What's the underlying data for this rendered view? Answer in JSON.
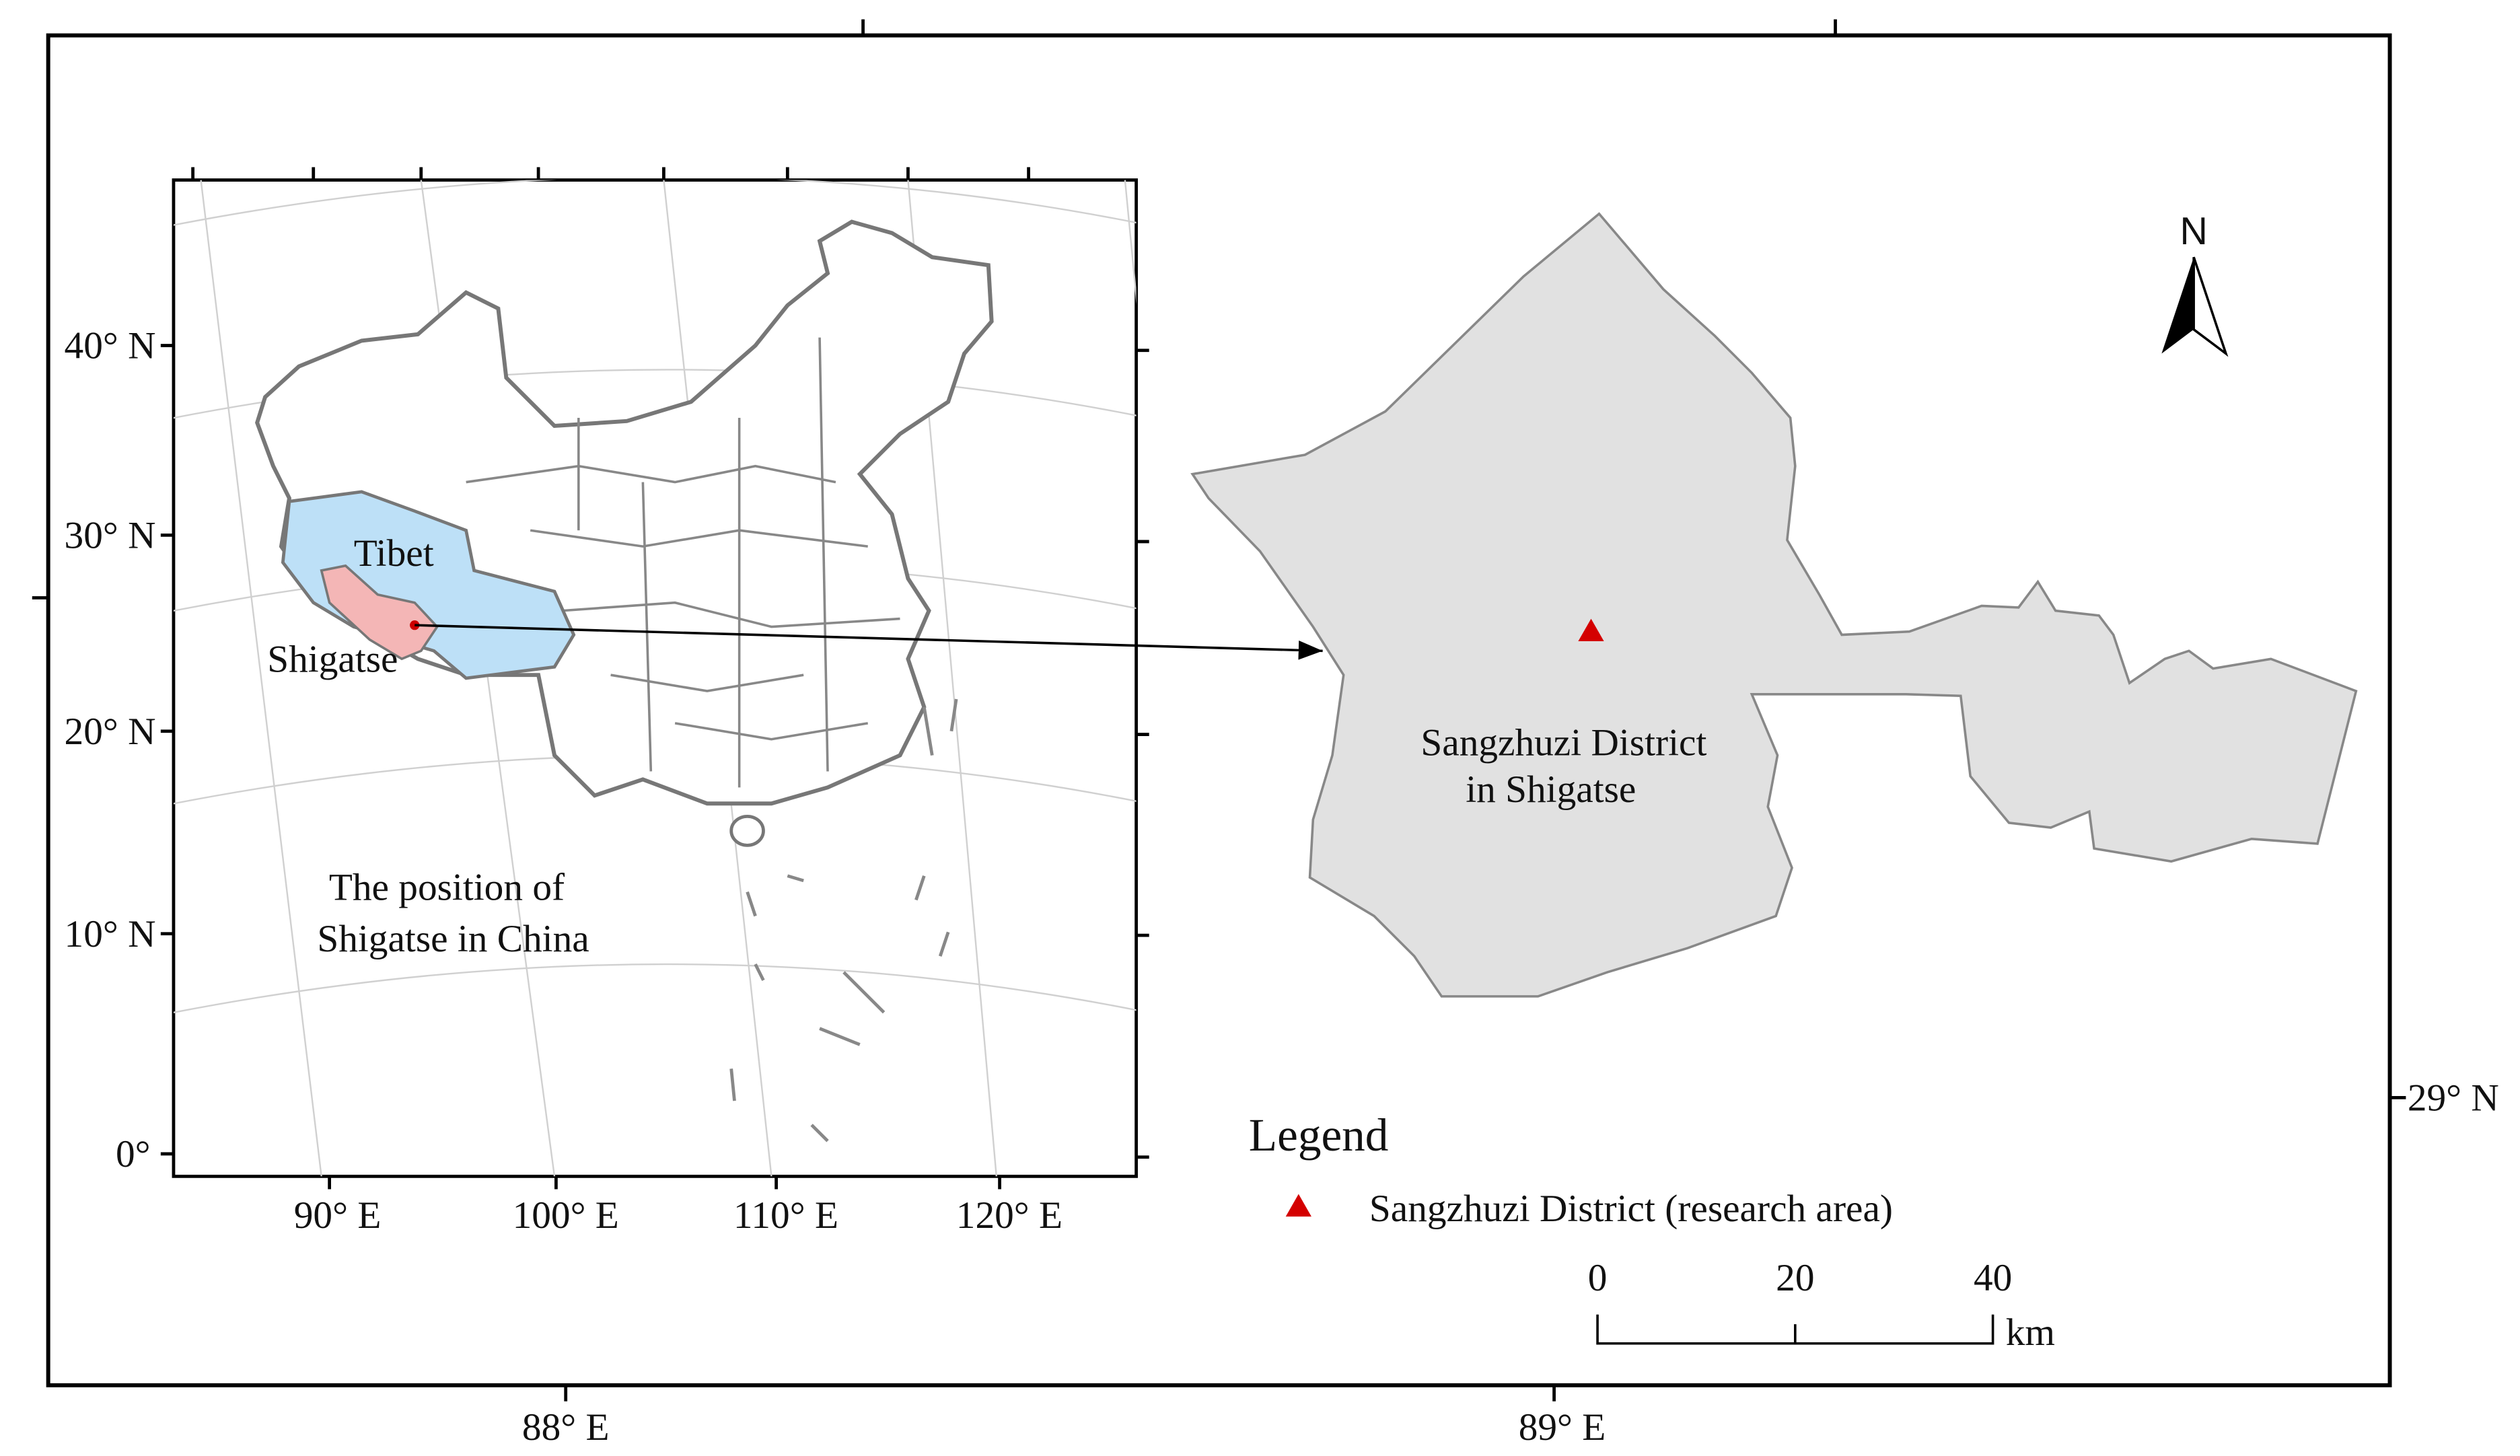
{
  "inset": {
    "lat_labels": [
      "40° N",
      "30° N",
      "20° N",
      "10° N",
      "0°"
    ],
    "lon_labels": [
      "90° E",
      "100° E",
      "110° E",
      "120° E"
    ],
    "region_labels": {
      "tibet": "Tibet",
      "shigatse": "Shigatse"
    },
    "caption": [
      "The position of",
      "Shigatse in China"
    ]
  },
  "main": {
    "district_label": [
      "Sangzhuzi District",
      "in Shigatse"
    ],
    "north": "N",
    "lon_labels": [
      "88° E",
      "89° E"
    ],
    "lat_labels": [
      "29° N"
    ]
  },
  "legend": {
    "title": "Legend",
    "items": [
      "Sangzhuzi District (research area)"
    ]
  },
  "scale_bar": {
    "ticks": [
      0,
      20,
      40
    ],
    "unit": "km"
  }
}
